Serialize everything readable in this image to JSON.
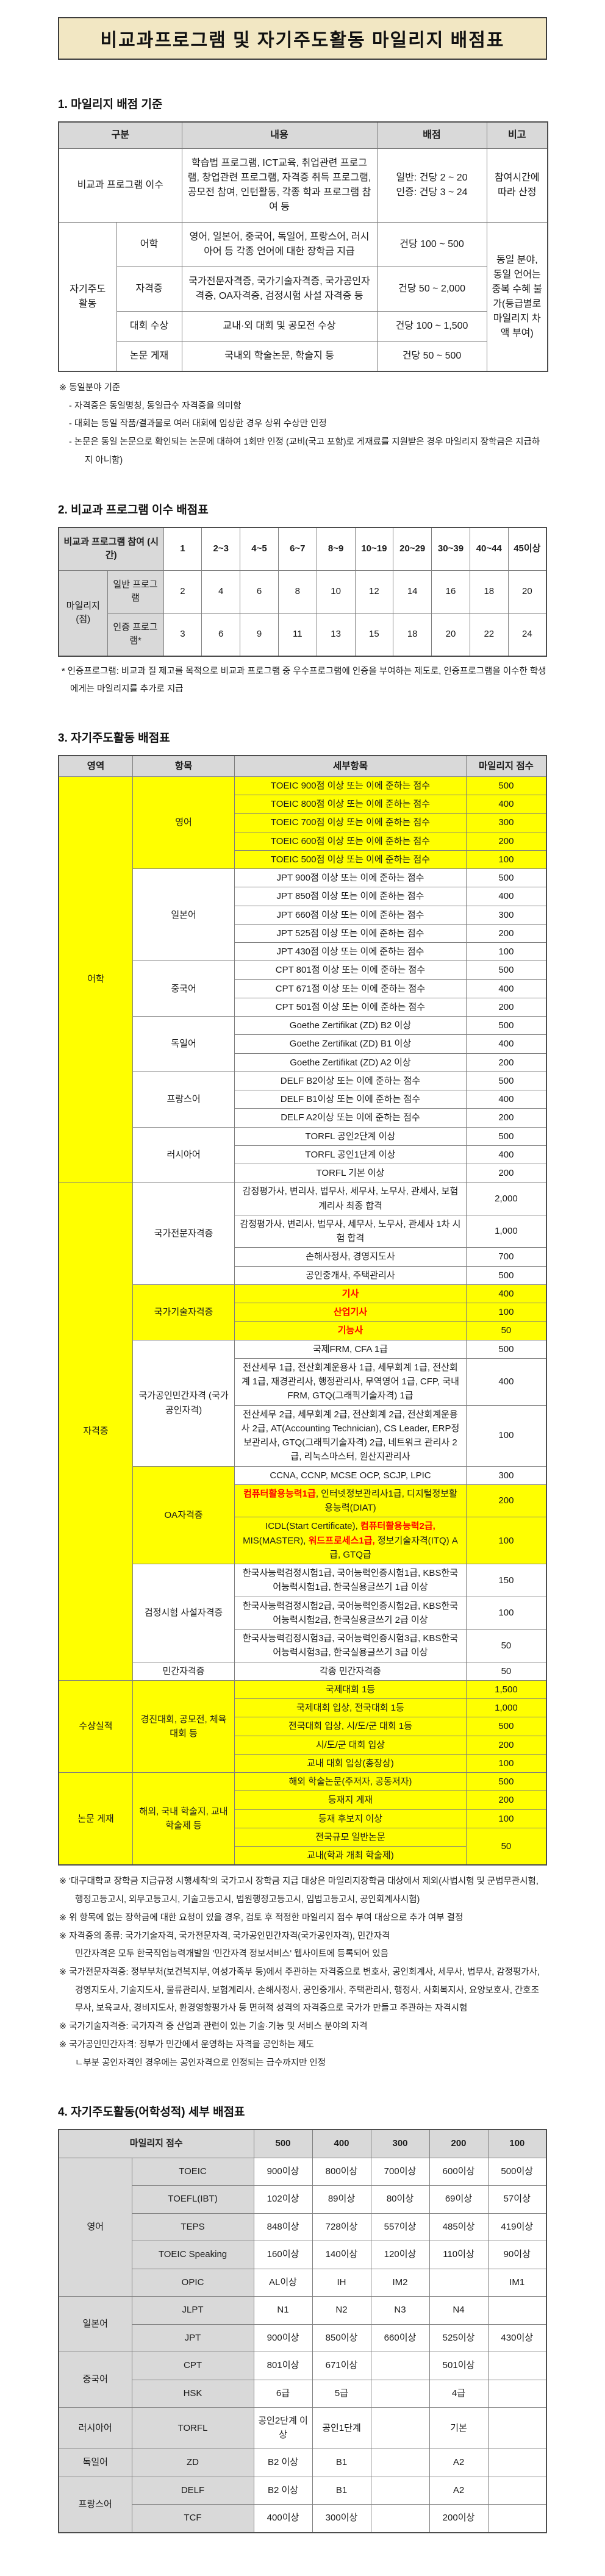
{
  "title": "비교과프로그램 및 자기주도활동 마일리지 배점표",
  "colors": {
    "title_bg": "#f2e7c3",
    "header_gray": "#d9d9d9",
    "highlight_yellow": "#ffff00",
    "red_text": "#ff0000"
  },
  "section1": {
    "heading": "1. 마일리지 배점 기준",
    "table": {
      "headers": [
        "구분",
        "내용",
        "배점",
        "비고"
      ],
      "row1": {
        "category": "비교과 프로그램 이수",
        "content": "학습법 프로그램, ICT교육, 취업관련 프로그램, 창업관련 프로그램, 자격증 취득 프로그램, 공모전 참여, 인턴활동, 각종 학과 프로그램 참여 등",
        "points": "일반: 건당 2 ~ 20\n인증: 건당 3 ~ 24",
        "note": "참여시간에 따라 산정"
      },
      "group2": {
        "category": "자기주도 활동",
        "note": "동일 분야, 동일 언어는 중복 수혜 불가(등급별로 마일리지 차액 부여)",
        "rows": [
          {
            "item": "어학",
            "content": "영어, 일본어, 중국어, 독일어, 프랑스어, 러시아어 등 각종 언어에 대한 장학금 지급",
            "points": "건당 100 ~ 500"
          },
          {
            "item": "자격증",
            "content": "국가전문자격증, 국가기술자격증, 국가공인자격증, OA자격증, 검정시험 사설 자격증 등",
            "points": "건당 50 ~ 2,000"
          },
          {
            "item": "대회 수상",
            "content": "교내·외 대회 및 공모전 수상",
            "points": "건당 100 ~ 1,500"
          },
          {
            "item": "논문 게재",
            "content": "국내외 학술논문, 학술지 등",
            "points": "건당 50 ~ 500"
          }
        ]
      }
    },
    "notes": [
      "※ 동일분야 기준",
      "- 자격증은 동일명칭, 동일급수 자격증을 의미함",
      "- 대회는 동일 작품/결과물로 여러 대회에 입상한 경우 상위 수상만 인정",
      "- 논문은 동일 논문으로 확인되는 논문에 대하여 1회만 인정 (교비(국고 포함)로 게재료를 지원받은 경우 마일리지 장학금은 지급하지 아니함)"
    ]
  },
  "section2": {
    "heading": "2. 비교과 프로그램 이수 배점표",
    "table": {
      "corner": "비교과 프로그램 참여 (시간)",
      "hours": [
        "1",
        "2~3",
        "4~5",
        "6~7",
        "8~9",
        "10~19",
        "20~29",
        "30~39",
        "40~44",
        "45이상"
      ],
      "row_group": "마일리지 (점)",
      "rows": [
        {
          "label": "일반 프로그램",
          "values": [
            "2",
            "4",
            "6",
            "8",
            "10",
            "12",
            "14",
            "16",
            "18",
            "20"
          ]
        },
        {
          "label": "인증 프로그램*",
          "values": [
            "3",
            "6",
            "9",
            "11",
            "13",
            "15",
            "18",
            "20",
            "22",
            "24"
          ]
        }
      ]
    },
    "note": "* 인증프로그램: 비교과 질 제고를 목적으로 비교과 프로그램 중 우수프로그램에 인증을 부여하는 제도로, 인증프로그램을 이수한 학생에게는 마일리지를 추가로 지급"
  },
  "section3": {
    "heading": "3. 자기주도활동 배점표",
    "headers": [
      "영역",
      "항목",
      "세부항목",
      "마일리지 점수"
    ],
    "areas": [
      {
        "name": "어학",
        "items": [
          {
            "name": "영어",
            "yellow": true,
            "rows": [
              {
                "detail": "TOEIC 900점 이상 또는 이에 준하는 점수",
                "score": "500",
                "yellow": true
              },
              {
                "detail": "TOEIC 800점 이상 또는 이에 준하는 점수",
                "score": "400",
                "yellow": true
              },
              {
                "detail": "TOEIC 700점 이상 또는 이에 준하는 점수",
                "score": "300",
                "yellow": true
              },
              {
                "detail": "TOEIC 600점 이상 또는 이에 준하는 점수",
                "score": "200",
                "yellow": true
              },
              {
                "detail": "TOEIC 500점 이상 또는 이에 준하는 점수",
                "score": "100",
                "yellow": true
              }
            ]
          },
          {
            "name": "일본어",
            "rows": [
              {
                "detail": "JPT 900점 이상 또는 이에 준하는 점수",
                "score": "500"
              },
              {
                "detail": "JPT 850점 이상 또는 이에 준하는 점수",
                "score": "400"
              },
              {
                "detail": "JPT 660점 이상 또는 이에 준하는 점수",
                "score": "300"
              },
              {
                "detail": "JPT 525점 이상 또는 이에 준하는 점수",
                "score": "200"
              },
              {
                "detail": "JPT 430점 이상 또는 이에 준하는 점수",
                "score": "100"
              }
            ]
          },
          {
            "name": "중국어",
            "rows": [
              {
                "detail": "CPT 801점 이상 또는 이에 준하는 점수",
                "score": "500"
              },
              {
                "detail": "CPT 671점 이상 또는 이에 준하는 점수",
                "score": "400"
              },
              {
                "detail": "CPT 501점 이상 또는 이에 준하는 점수",
                "score": "200"
              }
            ]
          },
          {
            "name": "독일어",
            "rows": [
              {
                "detail": "Goethe Zertifikat (ZD) B2 이상",
                "score": "500"
              },
              {
                "detail": "Goethe Zertifikat (ZD) B1 이상",
                "score": "400"
              },
              {
                "detail": "Goethe Zertifikat (ZD) A2 이상",
                "score": "200"
              }
            ]
          },
          {
            "name": "프랑스어",
            "rows": [
              {
                "detail": "DELF B2이상 또는 이에 준하는 점수",
                "score": "500"
              },
              {
                "detail": "DELF B1이상 또는 이에 준하는 점수",
                "score": "400"
              },
              {
                "detail": "DELF A2이상 또는 이에 준하는 점수",
                "score": "200"
              }
            ]
          },
          {
            "name": "러시아어",
            "rows": [
              {
                "detail": "TORFL 공인2단계 이상",
                "score": "500"
              },
              {
                "detail": "TORFL 공인1단계 이상",
                "score": "400"
              },
              {
                "detail": "TORFL 기본 이상",
                "score": "200"
              }
            ]
          }
        ]
      },
      {
        "name": "자격증",
        "items": [
          {
            "name": "국가전문자격증",
            "rows": [
              {
                "detail": "감정평가사, 변리사, 법무사, 세무사, 노무사, 관세사, 보험계리사 최종 합격",
                "score": "2,000"
              },
              {
                "detail": "감정평가사, 변리사, 법무사, 세무사, 노무사, 관세사 1차 시험 합격",
                "score": "1,000"
              },
              {
                "detail": "손해사정사, 경영지도사",
                "score": "700"
              },
              {
                "detail": "공인중개사, 주택관리사",
                "score": "500"
              }
            ]
          },
          {
            "name": "국가기술자격증",
            "yellow": true,
            "rows": [
              {
                "detail": "기사",
                "score": "400",
                "yellow": true,
                "red": true
              },
              {
                "detail": "산업기사",
                "score": "100",
                "yellow": true,
                "red": true
              },
              {
                "detail": "기능사",
                "score": "50",
                "yellow": true,
                "red": true
              }
            ]
          },
          {
            "name": "국가공인민간자격 (국가공인자격)",
            "rows": [
              {
                "detail": "국제FRM, CFA 1급",
                "score": "500"
              },
              {
                "detail": "전산세무 1급, 전산회계운용사 1급, 세무회계 1급, 전산회계 1급, 재경관리사, 행정관리사, 무역영어 1급, CFP, 국내FRM, GTQ(그래픽기술자격) 1급",
                "score": "400"
              },
              {
                "detail": "전산세무 2급, 세무회계 2급, 전산회계 2급, 전산회계운용사 2급, AT(Accounting Technician), CS Leader, ERP정보관리사, GTQ(그래픽기술자격) 2급, 네트워크 관리사 2급, 리눅스마스터, 원산지관리사",
                "score": "100"
              }
            ]
          },
          {
            "name": "OA자격증",
            "yellow": true,
            "rows": [
              {
                "detail": "CCNA, CCNP, MCSE OCP, SCJP, LPIC",
                "score": "300"
              },
              {
                "segments": [
                  {
                    "t": "컴퓨터활용능력1급",
                    "red": true
                  },
                  {
                    "t": ", 인터넷정보관리사1급, 디지털정보활용능력(DIAT)"
                  }
                ],
                "score": "200",
                "yellow": true
              },
              {
                "segments": [
                  {
                    "t": "ICDL(Start Certificate), "
                  },
                  {
                    "t": "컴퓨터활용능력2급,",
                    "red": true
                  },
                  {
                    "t": " MIS(MASTER), "
                  },
                  {
                    "t": "워드프로세스1급,",
                    "red": true
                  },
                  {
                    "t": " 정보기술자격(ITQ) A급, GTQ급"
                  }
                ],
                "score": "100",
                "yellow": true
              }
            ]
          },
          {
            "name": "검정시험 사설자격증",
            "rows": [
              {
                "detail": "한국사능력검정시험1급, 국어능력인증시험1급, KBS한국어능력시험1급, 한국실용글쓰기 1급 이상",
                "score": "150"
              },
              {
                "detail": "한국사능력검정시험2급, 국어능력인증시험2급, KBS한국어능력시험2급, 한국실용글쓰기 2급 이상",
                "score": "100"
              },
              {
                "detail": "한국사능력검정시험3급, 국어능력인증시험3급, KBS한국어능력시험3급, 한국실용글쓰기 3급 이상",
                "score": "50"
              }
            ]
          },
          {
            "name": "민간자격증",
            "rows": [
              {
                "detail": "각종 민간자격증",
                "score": "50"
              }
            ]
          }
        ]
      },
      {
        "name": "수상실적",
        "items": [
          {
            "name": "경진대회, 공모전, 체육대회 등",
            "yellow": true,
            "rows": [
              {
                "detail": "국제대회 1등",
                "score": "1,500",
                "yellow": true
              },
              {
                "detail": "국제대회 입상, 전국대회 1등",
                "score": "1,000",
                "yellow": true
              },
              {
                "detail": "전국대회 입상, 시/도/군 대회 1등",
                "score": "500",
                "yellow": true
              },
              {
                "detail": "시/도/군 대회 입상",
                "score": "200",
                "yellow": true
              },
              {
                "detail": "교내 대회 입상(총장상)",
                "score": "100",
                "yellow": true
              }
            ]
          }
        ]
      },
      {
        "name": "논문 게재",
        "items": [
          {
            "name": "해외, 국내 학술지, 교내 학술제 등",
            "yellow": true,
            "rows": [
              {
                "detail": "해외 학술논문(주저자, 공동저자)",
                "score": "500",
                "yellow": true
              },
              {
                "detail": "등재지 게재",
                "score": "200",
                "yellow": true
              },
              {
                "detail": "등재 후보지 이상",
                "score": "100",
                "yellow": true
              },
              {
                "detail": "전국규모 일반논문",
                "score": "50",
                "yellow": true,
                "score_rowspan": 2
              },
              {
                "detail": "교내(학과 개최 학술제)",
                "yellow": true,
                "merge_score": true
              }
            ]
          }
        ]
      }
    ],
    "notes": [
      {
        "text": "※ '대구대학교 장학금 지급규정 시행세칙'의 국가고시 장학금 지급 대상은 마일리지장학금 대상에서 제외(사법시험 및 군법무관시험, 행정고등고시, 외무고등고시, 기술고등고시, 법원행정고등고시, 입법고등고시, 공인회계사시험)",
        "sub": false
      },
      {
        "text": "※ 위 항목에 없는 장학금에 대한 요청이 있을 경우, 검토 후 적정한 마일리지 점수 부여 대상으로 추가 여부 결정",
        "sub": false
      },
      {
        "text": "※ 자격증의 종류: 국가기술자격, 국가전문자격, 국가공인민간자격(국가공인자격), 민간자격",
        "sub": false
      },
      {
        "text": "민간자격은 모두 한국직업능력개발원 '민간자격 정보서비스' 웹사이트에 등록되어 있음",
        "sub": true
      },
      {
        "text": "※ 국가전문자격증: 정부부처(보건복지부, 여성가족부 등)에서 주관하는 자격증으로 변호사, 공인회계사, 세무사, 법무사, 감정평가사, 경영지도사, 기술지도사, 물류관리사, 보험계리사, 손해사정사, 공인중개사, 주택관리사, 행정사, 사회복지사, 요양보호사, 간호조무사, 보육교사, 경비지도사, 환경영향평가사 등 면허적 성격의 자격증으로 국가가 만들고 주관하는 자격시험",
        "sub": false
      },
      {
        "text": "※ 국가기술자격증: 국가자격 중 산업과 관련이 있는 기술·기능 및 서비스 분야의 자격",
        "sub": false
      },
      {
        "text": "※ 국가공인민간자격: 정부가 민간에서 운영하는 자격을 공인하는 제도",
        "sub": false
      },
      {
        "text": "ㄴ부분 공인자격인 경우에는 공인자격으로 인정되는 급수까지만 인정",
        "sub": true
      }
    ]
  },
  "section4": {
    "heading": "4. 자기주도활동(어학성적) 세부 배점표",
    "table": {
      "corner": "마일리지 점수",
      "points": [
        "500",
        "400",
        "300",
        "200",
        "100"
      ],
      "groups": [
        {
          "lang": "영어",
          "tests": [
            {
              "name": "TOEIC",
              "vals": [
                "900이상",
                "800이상",
                "700이상",
                "600이상",
                "500이상"
              ]
            },
            {
              "name": "TOEFL(IBT)",
              "vals": [
                "102이상",
                "89이상",
                "80이상",
                "69이상",
                "57이상"
              ]
            },
            {
              "name": "TEPS",
              "vals": [
                "848이상",
                "728이상",
                "557이상",
                "485이상",
                "419이상"
              ]
            },
            {
              "name": "TOEIC Speaking",
              "vals": [
                "160이상",
                "140이상",
                "120이상",
                "110이상",
                "90이상"
              ]
            },
            {
              "name": "OPIC",
              "vals": [
                "AL이상",
                "IH",
                "IM2",
                "",
                "IM1"
              ]
            }
          ]
        },
        {
          "lang": "일본어",
          "tests": [
            {
              "name": "JLPT",
              "vals": [
                "N1",
                "N2",
                "N3",
                "N4",
                ""
              ]
            },
            {
              "name": "JPT",
              "vals": [
                "900이상",
                "850이상",
                "660이상",
                "525이상",
                "430이상"
              ]
            }
          ]
        },
        {
          "lang": "중국어",
          "tests": [
            {
              "name": "CPT",
              "vals": [
                "801이상",
                "671이상",
                "",
                "501이상",
                ""
              ]
            },
            {
              "name": "HSK",
              "vals": [
                "6급",
                "5급",
                "",
                "4급",
                ""
              ]
            }
          ]
        },
        {
          "lang": "러시아어",
          "tests": [
            {
              "name": "TORFL",
              "vals": [
                "공인2단계 이상",
                "공인1단계",
                "",
                "기본",
                ""
              ]
            }
          ]
        },
        {
          "lang": "독일어",
          "tests": [
            {
              "name": "ZD",
              "vals": [
                "B2 이상",
                "B1",
                "",
                "A2",
                ""
              ]
            }
          ]
        },
        {
          "lang": "프랑스어",
          "tests": [
            {
              "name": "DELF",
              "vals": [
                "B2 이상",
                "B1",
                "",
                "A2",
                ""
              ]
            },
            {
              "name": "TCF",
              "vals": [
                "400이상",
                "300이상",
                "",
                "200이상",
                ""
              ]
            }
          ]
        }
      ]
    }
  }
}
